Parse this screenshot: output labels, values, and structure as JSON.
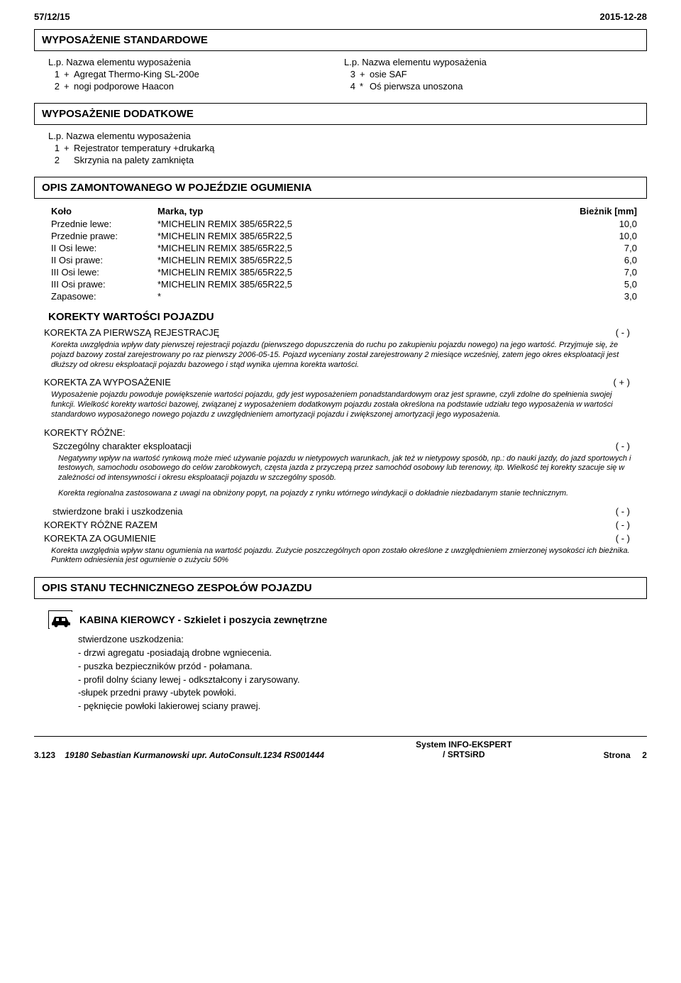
{
  "header": {
    "doc_ref": "57/12/15",
    "date": "2015-12-28"
  },
  "section_std_title": "WYPOSAŻENIE STANDARDOWE",
  "lp_label": "L.p. Nazwa elementu wyposażenia",
  "std_items": {
    "left": [
      {
        "n": "1",
        "sym": "+",
        "txt": "Agregat Thermo-King SL-200e"
      },
      {
        "n": "2",
        "sym": "+",
        "txt": "nogi podporowe Haacon"
      }
    ],
    "right": [
      {
        "n": "3",
        "sym": "+",
        "txt": "osie SAF"
      },
      {
        "n": "4",
        "sym": "*",
        "txt": "Oś pierwsza unoszona"
      }
    ]
  },
  "section_add_title": "WYPOSAŻENIE DODATKOWE",
  "add_items": [
    {
      "n": "1",
      "sym": "+",
      "txt": "Rejestrator temperatury +drukarką"
    },
    {
      "n": "2",
      "sym": "",
      "txt": "Skrzynia na palety zamknięta"
    }
  ],
  "tires_title": "OPIS ZAMONTOWANEGO W POJEŹDZIE OGUMIENIA",
  "tire_headers": {
    "kolo": "Koło",
    "marka": "Marka, typ",
    "biez": "Bieżnik [mm]"
  },
  "tires": [
    {
      "pos": "Przednie lewe:",
      "brand": "*MICHELIN REMIX 385/65R22,5",
      "tread": "10,0"
    },
    {
      "pos": "Przednie prawe:",
      "brand": "*MICHELIN REMIX 385/65R22,5",
      "tread": "10,0"
    },
    {
      "pos": "II Osi lewe:",
      "brand": "*MICHELIN REMIX 385/65R22,5",
      "tread": "7,0"
    },
    {
      "pos": "II Osi prawe:",
      "brand": "*MICHELIN REMIX 385/65R22,5",
      "tread": "6,0"
    },
    {
      "pos": "III Osi lewe:",
      "brand": "*MICHELIN REMIX 385/65R22,5",
      "tread": "7,0"
    },
    {
      "pos": "III Osi prawe:",
      "brand": "*MICHELIN REMIX 385/65R22,5",
      "tread": "5,0"
    },
    {
      "pos": "Zapasowe:",
      "brand": "*",
      "tread": "3,0"
    }
  ],
  "kor_title": "KOREKTY WARTOŚCI POJAZDU",
  "kor": {
    "first_reg": {
      "label": "KOREKTA ZA PIERWSZĄ REJESTRACJĘ",
      "val": "( - )",
      "note": "Korekta uwzględnia wpływ daty pierwszej rejestracji pojazdu (pierwszego dopuszczenia do ruchu po zakupieniu pojazdu nowego) na jego wartość. Przyjmuje się, że pojazd bazowy został zarejestrowany po raz pierwszy 2006-05-15. Pojazd wyceniany został zarejestrowany 2 miesiące wcześniej, zatem jego okres eksploatacji jest dłuższy od okresu eksploatacji pojazdu bazowego i stąd wynika ujemna korekta wartości."
    },
    "wypos": {
      "label": "KOREKTA ZA WYPOSAŻENIE",
      "val": "( + )",
      "note": "Wyposażenie pojazdu powoduje powiększenie wartości pojazdu, gdy jest wyposażeniem ponadstandardowym oraz jest sprawne, czyli zdolne do spełnienia swojej funkcji. Wielkość korekty wartości bazowej, związanej z wyposażeniem dodatkowym pojazdu została określona na podstawie udziału tego wyposażenia w wartości standardowo wyposażonego nowego pojazdu z uwzględnieniem amortyzacji pojazdu i zwiększonej amortyzacji jego wyposażenia."
    },
    "rozne_label": "KOREKTY RÓŻNE:",
    "szczeg": {
      "label": "Szczególny charakter eksploatacji",
      "val": "( - )",
      "note1": "Negatywny wpływ na wartość rynkową może mieć używanie pojazdu w nietypowych warunkach, jak też w nietypowy sposób, np.: do nauki jazdy, do jazd sportowych i testowych, samochodu osobowego do celów zarobkowych, częsta jazda z przyczepą przez samochód osobowy lub terenowy, itp. Wielkość tej korekty szacuje się w zależności od intensywności i okresu eksploatacji pojazdu w szczególny sposób.",
      "note2": "Korekta regionalna zastosowana z uwagi na obniżony popyt, na pojazdy z rynku wtórnego windykacji o dokładnie niezbadanym stanie technicznym."
    },
    "braki": {
      "label": "stwierdzone braki i uszkodzenia",
      "val": "( - )"
    },
    "rozne_razem": {
      "label": "KOREKTY RÓŻNE RAZEM",
      "val": "( - )"
    },
    "ogum": {
      "label": "KOREKTA ZA OGUMIENIE",
      "val": "( - )",
      "note": "Korekta uwzględnia wpływ stanu ogumienia na wartość pojazdu. Zużycie poszczególnych opon zostało określone z uwzględnieniem zmierzonej wysokości ich bieżnika. Punktem odniesienia jest ogumienie o zużyciu 50%"
    }
  },
  "tech_title": "OPIS STANU TECHNICZNEGO ZESPOŁÓW POJAZDU",
  "kabina_title": "KABINA KIEROWCY - Szkielet i poszycia zewnętrzne",
  "dmg_header": "stwierdzone uszkodzenia:",
  "dmg": [
    "- drzwi agregatu -posiadają drobne wgniecenia.",
    "- puszka bezpieczników przód - połamana.",
    "- profil dolny ściany lewej - odkształcony i zarysowany.",
    "-słupek przedni prawy -ubytek powłoki.",
    "- pęknięcie powłoki lakierowej sciany prawej."
  ],
  "footer": {
    "left_num": "3.123",
    "left_txt": "19180 Sebastian Kurmanowski upr. AutoConsult.1234 RS001444",
    "mid1": "System INFO-EKSPERT",
    "mid2": "/ SRTSiRD",
    "right_lbl": "Strona",
    "right_num": "2"
  }
}
